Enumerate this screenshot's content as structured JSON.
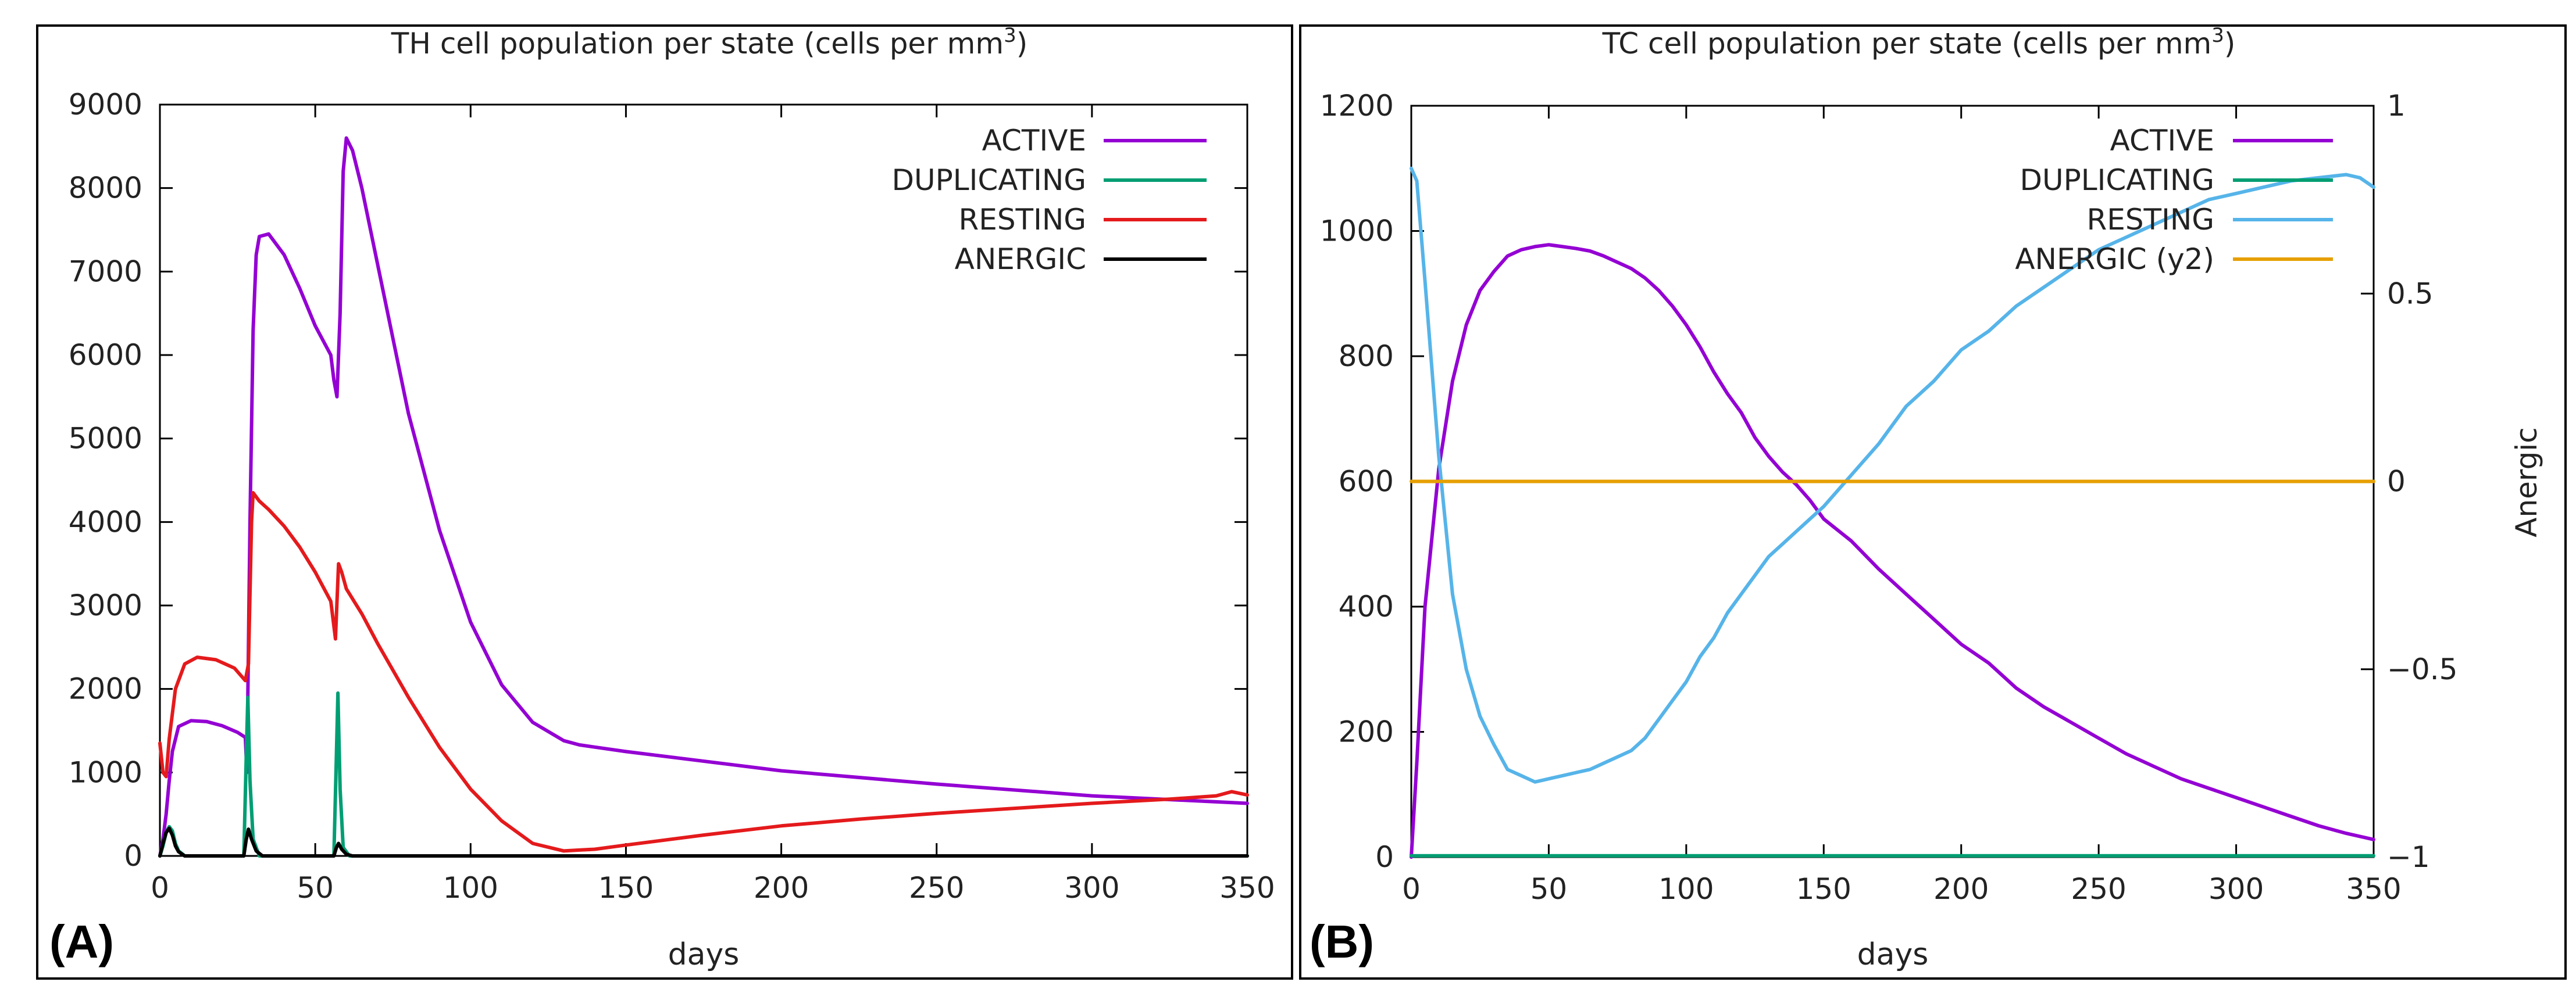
{
  "chart_data": [
    {
      "type": "line",
      "panel_label": "(A)",
      "title": "TH cell population per state (cells per mm",
      "title_sup": "3",
      "title_end": ")",
      "xlabel": "days",
      "ylabel": "",
      "xlim": [
        0,
        350
      ],
      "ylim": [
        0,
        9000
      ],
      "xticks": [
        0,
        50,
        100,
        150,
        200,
        250,
        300,
        350
      ],
      "yticks": [
        0,
        1000,
        2000,
        3000,
        4000,
        5000,
        6000,
        7000,
        8000,
        9000
      ],
      "legend_position": "top-right",
      "series": [
        {
          "name": "ACTIVE",
          "color": "#9400d3",
          "x": [
            0,
            1,
            2,
            3,
            4,
            6,
            10,
            15,
            20,
            25,
            27.5,
            28,
            29,
            30,
            31,
            32,
            35,
            40,
            45,
            50,
            55,
            56,
            57,
            58,
            59,
            60,
            62,
            65,
            70,
            75,
            80,
            90,
            100,
            110,
            120,
            130,
            135,
            150,
            200,
            250,
            300,
            350
          ],
          "y": [
            0,
            200,
            500,
            900,
            1250,
            1550,
            1620,
            1610,
            1560,
            1480,
            1420,
            1000,
            4000,
            6300,
            7200,
            7420,
            7450,
            7200,
            6800,
            6350,
            6000,
            5700,
            5500,
            6500,
            8200,
            8600,
            8450,
            8000,
            7100,
            6200,
            5300,
            3900,
            2800,
            2050,
            1600,
            1380,
            1330,
            1250,
            1020,
            860,
            720,
            630
          ]
        },
        {
          "name": "DUPLICATING",
          "color": "#009e73",
          "x": [
            0,
            1,
            2,
            3,
            4,
            5,
            6,
            8,
            10,
            27,
            27.8,
            28.3,
            29,
            30,
            32,
            56,
            56.8,
            57.3,
            58,
            59,
            61,
            350
          ],
          "y": [
            0,
            120,
            280,
            350,
            300,
            150,
            60,
            0,
            0,
            0,
            1200,
            1900,
            900,
            200,
            0,
            0,
            1200,
            1950,
            800,
            100,
            0,
            0
          ]
        },
        {
          "name": "RESTING",
          "color": "#e41a1c",
          "x": [
            0,
            1,
            2,
            3,
            5,
            8,
            12,
            18,
            24,
            27.5,
            28.5,
            29.5,
            30,
            32,
            35,
            40,
            45,
            50,
            55,
            56.5,
            57.5,
            58.5,
            60,
            65,
            70,
            80,
            90,
            100,
            110,
            120,
            130,
            135,
            140,
            150,
            175,
            200,
            225,
            250,
            275,
            300,
            325,
            340,
            345,
            350
          ],
          "y": [
            1350,
            1000,
            950,
            1400,
            2000,
            2300,
            2380,
            2350,
            2250,
            2100,
            2300,
            4000,
            4350,
            4250,
            4150,
            3950,
            3700,
            3400,
            3050,
            2600,
            3500,
            3400,
            3200,
            2900,
            2550,
            1900,
            1300,
            800,
            420,
            150,
            60,
            70,
            80,
            130,
            250,
            360,
            440,
            510,
            570,
            630,
            680,
            720,
            770,
            730
          ]
        },
        {
          "name": "ANERGIC",
          "color": "#000000",
          "x": [
            0,
            1,
            2,
            3,
            4,
            5,
            6,
            8,
            10,
            27,
            27.8,
            28.5,
            29.5,
            31,
            33,
            56,
            56.8,
            57.5,
            58.5,
            60,
            62,
            350
          ],
          "y": [
            0,
            150,
            280,
            330,
            250,
            120,
            50,
            0,
            0,
            0,
            200,
            320,
            200,
            60,
            0,
            0,
            100,
            150,
            80,
            20,
            0,
            0
          ]
        }
      ]
    },
    {
      "type": "line",
      "panel_label": "(B)",
      "title": "TC cell population per state (cells per mm",
      "title_sup": "3",
      "title_end": ")",
      "xlabel": "days",
      "ylabel": "",
      "y2label": "Anergic",
      "xlim": [
        0,
        350
      ],
      "ylim": [
        0,
        1200
      ],
      "y2lim": [
        -1,
        1
      ],
      "xticks": [
        0,
        50,
        100,
        150,
        200,
        250,
        300,
        350
      ],
      "yticks": [
        0,
        200,
        400,
        600,
        800,
        1000,
        1200
      ],
      "y2ticks": [
        -1,
        -0.5,
        0,
        0.5,
        1
      ],
      "y2ticklabels": [
        "−1",
        "−0.5",
        "0",
        "0.5",
        "1"
      ],
      "legend_position": "top-right",
      "series": [
        {
          "name": "ACTIVE",
          "color": "#9400d3",
          "axis": "y",
          "x": [
            0,
            2,
            5,
            10,
            15,
            20,
            25,
            30,
            35,
            40,
            45,
            50,
            55,
            60,
            65,
            70,
            75,
            80,
            85,
            90,
            95,
            100,
            105,
            110,
            115,
            120,
            125,
            130,
            135,
            140,
            145,
            150,
            160,
            170,
            180,
            190,
            200,
            210,
            220,
            230,
            240,
            250,
            260,
            270,
            280,
            290,
            300,
            310,
            320,
            330,
            340,
            350
          ],
          "y": [
            0,
            150,
            400,
            620,
            760,
            850,
            905,
            935,
            960,
            970,
            975,
            978,
            975,
            972,
            968,
            960,
            950,
            940,
            925,
            905,
            880,
            850,
            815,
            775,
            740,
            710,
            670,
            640,
            615,
            595,
            570,
            540,
            505,
            460,
            420,
            380,
            340,
            310,
            270,
            240,
            215,
            190,
            165,
            145,
            125,
            110,
            95,
            80,
            65,
            50,
            38,
            28
          ]
        },
        {
          "name": "DUPLICATING",
          "color": "#009e73",
          "axis": "y",
          "x": [
            0,
            350
          ],
          "y": [
            2,
            2
          ]
        },
        {
          "name": "RESTING",
          "color": "#56b4e9",
          "axis": "y",
          "x": [
            0,
            2,
            5,
            10,
            15,
            20,
            25,
            30,
            35,
            40,
            45,
            50,
            55,
            60,
            65,
            70,
            75,
            80,
            85,
            90,
            95,
            100,
            105,
            110,
            115,
            120,
            125,
            130,
            135,
            140,
            145,
            150,
            160,
            170,
            180,
            190,
            200,
            210,
            220,
            230,
            240,
            250,
            260,
            270,
            280,
            290,
            300,
            310,
            320,
            330,
            340,
            345,
            350
          ],
          "y": [
            1100,
            1080,
            920,
            640,
            420,
            300,
            225,
            180,
            140,
            130,
            120,
            125,
            130,
            135,
            140,
            150,
            160,
            170,
            190,
            220,
            250,
            280,
            320,
            350,
            390,
            420,
            450,
            480,
            500,
            520,
            540,
            560,
            610,
            660,
            720,
            760,
            810,
            840,
            880,
            910,
            940,
            970,
            990,
            1010,
            1030,
            1050,
            1060,
            1070,
            1080,
            1085,
            1090,
            1085,
            1070
          ]
        },
        {
          "name": "ANERGIC (y2)",
          "color": "#e69f00",
          "axis": "y2",
          "x": [
            0,
            350
          ],
          "y": [
            0,
            0
          ]
        }
      ]
    }
  ]
}
